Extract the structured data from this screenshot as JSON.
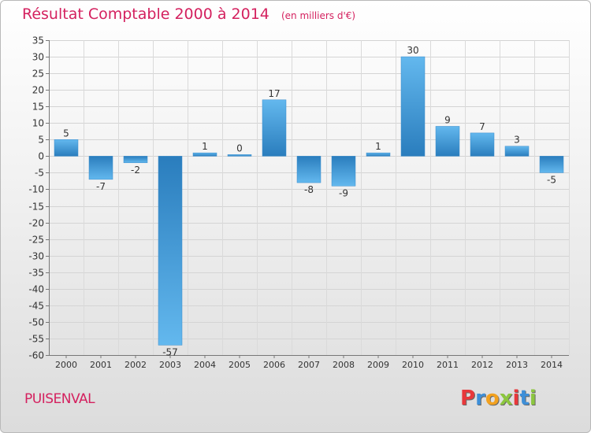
{
  "header": {
    "title": "Résultat Comptable 2000 à 2014",
    "unit": "(en milliers d'€)"
  },
  "footer": {
    "commune": "PUISENVAL",
    "logo_letters": [
      "P",
      "r",
      "o",
      "x",
      "i",
      "t",
      "i"
    ],
    "logo_colors": [
      "#e8383b",
      "#3e8fd8",
      "#f2a11f",
      "#8cc63f",
      "#e8383b",
      "#3e8fd8",
      "#8cc63f"
    ]
  },
  "colors": {
    "title": "#d4215f",
    "bar_light": "#5db2ea",
    "bar_dark": "#2a7fc0",
    "label": "#333333",
    "grid": "#d0d0d0"
  },
  "chart_data": {
    "type": "bar",
    "categories": [
      "2000",
      "2001",
      "2002",
      "2003",
      "2004",
      "2005",
      "2006",
      "2007",
      "2008",
      "2009",
      "2010",
      "2011",
      "2012",
      "2013",
      "2014"
    ],
    "values": [
      5,
      -7,
      -2,
      -57,
      1,
      0,
      17,
      -8,
      -9,
      1,
      30,
      9,
      7,
      3,
      -5
    ],
    "data_labels": [
      "5",
      "-7",
      "-2",
      "-57",
      "1",
      "0",
      "17",
      "-8",
      "-9",
      "1",
      "30",
      "9",
      "7",
      "3",
      "-5"
    ],
    "yticks": [
      35,
      30,
      25,
      20,
      15,
      10,
      5,
      0,
      -5,
      -10,
      -15,
      -20,
      -25,
      -30,
      -35,
      -40,
      -45,
      -50,
      -55,
      -60
    ],
    "ylim": [
      -60,
      35
    ],
    "grid": true,
    "title": "Résultat Comptable 2000 à 2014",
    "xlabel": "",
    "ylabel": ""
  }
}
